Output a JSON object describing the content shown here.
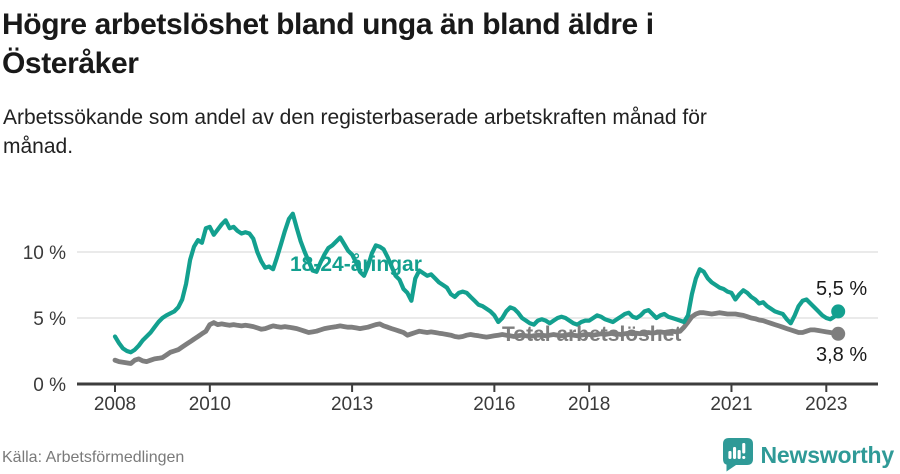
{
  "header": {
    "title": "Högre arbetslöshet bland unga än bland äldre i Österåker",
    "title_lines": [
      "Högre arbetslöshet bland unga än bland äldre i",
      "Österåker"
    ],
    "subtitle": "Arbetssökande som andel av den registerbaserade arbetskraften månad för månad.",
    "subtitle_lines": [
      "Arbetssökande som andel av den registerbaserade arbetskraften månad för",
      "månad."
    ]
  },
  "colors": {
    "youth_line": "#13a08f",
    "total_line": "#7e7e7e",
    "gridline": "#e3e3e3",
    "axis": "#3d3d3d",
    "end_label_text": "#1a1a1a",
    "brand_teal": "#2f9a97"
  },
  "chart_data": {
    "type": "line",
    "unit": "%",
    "x_start_month": "2008-01",
    "x_end_month": "2023-04",
    "x_step_months": 1,
    "grid": "horizontal-only",
    "legend_position": "inline-labels",
    "ylim": [
      0,
      14
    ],
    "y_ticks": [
      {
        "value": 0,
        "label": "0 %"
      },
      {
        "value": 5,
        "label": "5 %"
      },
      {
        "value": 10,
        "label": "10 %"
      }
    ],
    "x_ticks": [
      {
        "year": 2008,
        "label": "2008"
      },
      {
        "year": 2010,
        "label": "2010"
      },
      {
        "year": 2013,
        "label": "2013"
      },
      {
        "year": 2016,
        "label": "2016"
      },
      {
        "year": 2018,
        "label": "2018"
      },
      {
        "year": 2021,
        "label": "2021"
      },
      {
        "year": 2023,
        "label": "2023"
      }
    ],
    "series": [
      {
        "name": "18-24-åringar",
        "color": "#13a08f",
        "end_label": "5,5 %",
        "end_value": 5.5,
        "values": [
          3.6,
          3.1,
          2.7,
          2.5,
          2.4,
          2.6,
          2.9,
          3.3,
          3.6,
          3.9,
          4.3,
          4.7,
          5.0,
          5.2,
          5.35,
          5.5,
          5.8,
          6.4,
          7.6,
          9.4,
          10.4,
          10.9,
          10.7,
          11.8,
          11.9,
          11.3,
          11.7,
          12.1,
          12.4,
          11.8,
          11.9,
          11.6,
          11.4,
          11.5,
          11.4,
          11.0,
          10.0,
          9.3,
          8.8,
          8.9,
          8.7,
          9.6,
          10.6,
          11.6,
          12.5,
          12.9,
          11.8,
          10.8,
          10.0,
          9.3,
          8.6,
          8.5,
          9.2,
          9.8,
          10.3,
          10.5,
          10.8,
          11.1,
          10.6,
          10.1,
          9.8,
          9.2,
          8.5,
          8.2,
          8.9,
          9.9,
          10.5,
          10.4,
          10.2,
          9.6,
          8.9,
          8.2,
          7.9,
          7.2,
          6.9,
          6.3,
          8.0,
          8.6,
          8.4,
          8.2,
          8.3,
          8.0,
          7.7,
          7.5,
          7.3,
          6.8,
          6.6,
          6.9,
          7.0,
          6.9,
          6.6,
          6.3,
          6.0,
          5.9,
          5.7,
          5.5,
          5.2,
          4.7,
          5.0,
          5.5,
          5.8,
          5.7,
          5.4,
          5.0,
          4.8,
          4.6,
          4.5,
          4.8,
          4.9,
          4.8,
          4.6,
          4.8,
          5.0,
          5.1,
          5.0,
          4.8,
          4.6,
          4.5,
          4.7,
          4.8,
          4.8,
          5.0,
          5.2,
          5.1,
          4.9,
          4.8,
          4.7,
          4.9,
          5.1,
          5.3,
          5.4,
          5.1,
          5.0,
          5.2,
          5.5,
          5.6,
          5.3,
          5.0,
          5.2,
          5.3,
          5.1,
          5.0,
          4.9,
          4.8,
          4.7,
          5.2,
          6.8,
          8.0,
          8.7,
          8.5,
          8.0,
          7.7,
          7.5,
          7.3,
          7.2,
          7.0,
          6.9,
          6.4,
          6.8,
          7.1,
          6.9,
          6.6,
          6.4,
          6.1,
          6.2,
          5.9,
          5.7,
          5.5,
          5.4,
          5.3,
          4.9,
          4.6,
          5.2,
          5.9,
          6.3,
          6.4,
          6.1,
          5.8,
          5.5,
          5.2,
          5.0,
          4.9,
          5.1,
          5.5
        ]
      },
      {
        "name": "Total arbetslöshet",
        "color": "#7e7e7e",
        "end_label": "3,8 %",
        "end_value": 3.8,
        "values": [
          1.8,
          1.7,
          1.65,
          1.6,
          1.55,
          1.8,
          1.9,
          1.75,
          1.7,
          1.8,
          1.9,
          1.95,
          2.0,
          2.2,
          2.4,
          2.5,
          2.6,
          2.8,
          3.0,
          3.2,
          3.4,
          3.6,
          3.8,
          4.0,
          4.5,
          4.65,
          4.5,
          4.55,
          4.5,
          4.45,
          4.5,
          4.45,
          4.4,
          4.45,
          4.4,
          4.35,
          4.25,
          4.15,
          4.2,
          4.3,
          4.4,
          4.35,
          4.3,
          4.35,
          4.3,
          4.25,
          4.2,
          4.1,
          4.0,
          3.9,
          3.95,
          4.0,
          4.1,
          4.2,
          4.25,
          4.3,
          4.35,
          4.4,
          4.35,
          4.3,
          4.3,
          4.25,
          4.2,
          4.25,
          4.3,
          4.4,
          4.5,
          4.55,
          4.4,
          4.3,
          4.2,
          4.1,
          4.0,
          3.9,
          3.7,
          3.8,
          3.9,
          4.0,
          3.95,
          3.9,
          3.95,
          3.9,
          3.85,
          3.8,
          3.75,
          3.7,
          3.6,
          3.55,
          3.6,
          3.7,
          3.75,
          3.7,
          3.65,
          3.6,
          3.55,
          3.6,
          3.65,
          3.7,
          3.75,
          3.7,
          3.65,
          3.6,
          3.65,
          3.7,
          3.65,
          3.6,
          3.65,
          3.7,
          3.7,
          3.65,
          3.7,
          3.75,
          3.7,
          3.65,
          3.7,
          3.75,
          3.7,
          3.65,
          3.7,
          3.75,
          3.75,
          3.7,
          3.75,
          3.8,
          3.75,
          3.8,
          3.85,
          3.8,
          3.75,
          3.8,
          3.85,
          3.8,
          3.85,
          3.8,
          3.85,
          3.9,
          3.85,
          3.9,
          3.95,
          3.9,
          3.95,
          4.0,
          3.95,
          4.0,
          4.3,
          4.7,
          5.1,
          5.3,
          5.4,
          5.4,
          5.35,
          5.3,
          5.35,
          5.4,
          5.35,
          5.3,
          5.3,
          5.3,
          5.25,
          5.2,
          5.1,
          5.0,
          4.95,
          4.85,
          4.8,
          4.7,
          4.6,
          4.5,
          4.4,
          4.3,
          4.2,
          4.1,
          4.0,
          3.9,
          3.9,
          4.0,
          4.1,
          4.1,
          4.05,
          4.0,
          3.95,
          3.9,
          3.85,
          3.8
        ]
      }
    ]
  },
  "footer": {
    "source": "Källa: Arbetsförmedlingen",
    "brand": "Newsworthy",
    "brand_icon": "newsworthy-badge-bar-chart"
  }
}
